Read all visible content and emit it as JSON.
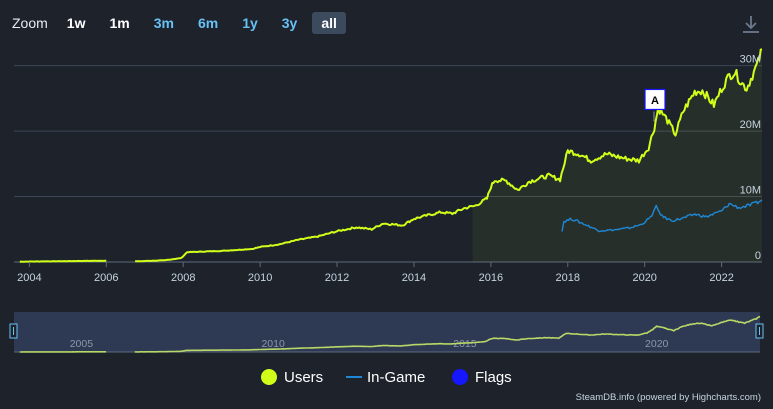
{
  "toolbar": {
    "zoom_label": "Zoom",
    "buttons": [
      "1w",
      "1m",
      "3m",
      "6m",
      "1y",
      "3y",
      "all"
    ],
    "active": "all",
    "download_icon": "download-icon"
  },
  "colors": {
    "background": "#1d222b",
    "users": "#d1ff1a",
    "in_game": "#1e88d6",
    "flags": "#1616ff",
    "navigator_bg": "#2e3a53"
  },
  "chart_data": {
    "type": "line",
    "xlim": [
      2003.6,
      2023.05
    ],
    "ylim": [
      0,
      33000000
    ],
    "y_ticks": [
      {
        "value": 0,
        "label": "0"
      },
      {
        "value": 10000000,
        "label": "10M"
      },
      {
        "value": 20000000,
        "label": "20M"
      },
      {
        "value": 30000000,
        "label": "30M"
      }
    ],
    "x_ticks": [
      "2004",
      "2006",
      "2008",
      "2010",
      "2012",
      "2014",
      "2016",
      "2018",
      "2020",
      "2022"
    ],
    "grid": true,
    "series": [
      {
        "name": "Users",
        "color": "#d1ff1a",
        "points": [
          [
            2003.75,
            50000
          ],
          [
            2006.0,
            200000
          ],
          [
            2006.2,
            null
          ],
          [
            2006.75,
            100000
          ],
          [
            2007.5,
            250000
          ],
          [
            2007.95,
            600000
          ],
          [
            2008.1,
            1500000
          ],
          [
            2009.0,
            1700000
          ],
          [
            2009.8,
            2000000
          ],
          [
            2010.0,
            2300000
          ],
          [
            2010.5,
            2700000
          ],
          [
            2011.0,
            3400000
          ],
          [
            2011.5,
            3900000
          ],
          [
            2012.0,
            4700000
          ],
          [
            2012.5,
            5300000
          ],
          [
            2012.9,
            5000000
          ],
          [
            2013.2,
            5900000
          ],
          [
            2013.7,
            5600000
          ],
          [
            2014.0,
            6600000
          ],
          [
            2014.4,
            7200000
          ],
          [
            2014.7,
            7600000
          ],
          [
            2015.0,
            7400000
          ],
          [
            2015.3,
            8200000
          ],
          [
            2015.6,
            8600000
          ],
          [
            2015.9,
            9700000
          ],
          [
            2016.0,
            11500000
          ],
          [
            2016.1,
            12500000
          ],
          [
            2016.4,
            12400000
          ],
          [
            2016.7,
            11000000
          ],
          [
            2017.0,
            12300000
          ],
          [
            2017.5,
            13200000
          ],
          [
            2017.8,
            12600000
          ],
          [
            2018.0,
            17000000
          ],
          [
            2018.3,
            16500000
          ],
          [
            2018.6,
            15500000
          ],
          [
            2019.0,
            16500000
          ],
          [
            2019.5,
            15800000
          ],
          [
            2019.85,
            15500000
          ],
          [
            2020.1,
            17500000
          ],
          [
            2020.25,
            20500000
          ],
          [
            2020.35,
            23500000
          ],
          [
            2020.55,
            22000000
          ],
          [
            2020.8,
            19500000
          ],
          [
            2021.0,
            23000000
          ],
          [
            2021.3,
            26000000
          ],
          [
            2021.5,
            26200000
          ],
          [
            2021.8,
            24000000
          ],
          [
            2022.0,
            26500000
          ],
          [
            2022.2,
            28500000
          ],
          [
            2022.35,
            29000000
          ],
          [
            2022.5,
            27500000
          ],
          [
            2022.65,
            26500000
          ],
          [
            2022.8,
            28500000
          ],
          [
            2022.95,
            30500000
          ],
          [
            2023.05,
            32500000
          ]
        ]
      },
      {
        "name": "In-Game",
        "color": "#1e88d6",
        "points": [
          [
            2017.85,
            4800000
          ],
          [
            2017.9,
            6200000
          ],
          [
            2018.1,
            6600000
          ],
          [
            2018.3,
            6100000
          ],
          [
            2018.5,
            5600000
          ],
          [
            2018.8,
            4800000
          ],
          [
            2019.2,
            4900000
          ],
          [
            2019.6,
            5200000
          ],
          [
            2019.9,
            5700000
          ],
          [
            2020.15,
            6800000
          ],
          [
            2020.3,
            8400000
          ],
          [
            2020.45,
            7000000
          ],
          [
            2020.7,
            6300000
          ],
          [
            2021.0,
            6700000
          ],
          [
            2021.3,
            7300000
          ],
          [
            2021.6,
            6900000
          ],
          [
            2022.0,
            7800000
          ],
          [
            2022.2,
            8900000
          ],
          [
            2022.45,
            8300000
          ],
          [
            2022.7,
            8600000
          ],
          [
            2022.9,
            9000000
          ],
          [
            2023.05,
            9500000
          ]
        ]
      }
    ],
    "flags": [
      {
        "x": 2020.45,
        "label": "A"
      }
    ],
    "navigator": {
      "ticks": [
        "2005",
        "2010",
        "2015",
        "2020"
      ],
      "xlim": [
        2003.6,
        2023.05
      ]
    },
    "legend": [
      "Users",
      "In-Game",
      "Flags"
    ],
    "legend_position": "bottom-center"
  },
  "credits": "SteamDB.info (powered by Highcharts.com)"
}
